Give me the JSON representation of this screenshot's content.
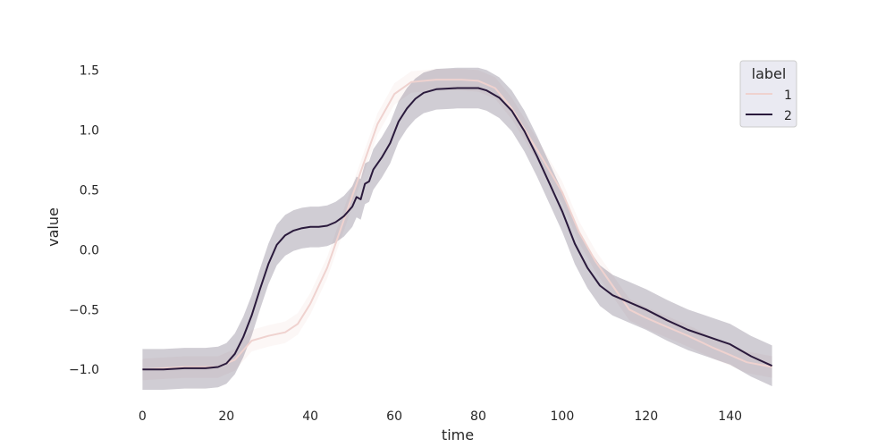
{
  "chart_data": {
    "type": "line",
    "xlabel": "time",
    "ylabel": "value",
    "xlim": [
      -2,
      152
    ],
    "ylim": [
      -1.2,
      1.6
    ],
    "xticks": [
      0,
      20,
      40,
      60,
      80,
      100,
      120,
      140
    ],
    "yticks": [
      -1.0,
      -0.5,
      0.0,
      0.5,
      1.0,
      1.5
    ],
    "ytick_labels": [
      "−1.0",
      "−0.5",
      "0.0",
      "0.5",
      "1.0",
      "1.5"
    ],
    "grid": false,
    "legend": {
      "title": "label",
      "placement": "top-right"
    },
    "series": [
      {
        "name": "1",
        "color": "#efd2cf",
        "band_opacity": 0.18,
        "points": [
          [
            0,
            -1.0
          ],
          [
            10,
            -0.98
          ],
          [
            18,
            -0.98
          ],
          [
            22,
            -0.92
          ],
          [
            26,
            -0.76
          ],
          [
            30,
            -0.72
          ],
          [
            34,
            -0.69
          ],
          [
            37,
            -0.62
          ],
          [
            40,
            -0.45
          ],
          [
            44,
            -0.15
          ],
          [
            48,
            0.25
          ],
          [
            52,
            0.65
          ],
          [
            56,
            1.05
          ],
          [
            60,
            1.3
          ],
          [
            64,
            1.4
          ],
          [
            70,
            1.42
          ],
          [
            76,
            1.42
          ],
          [
            80,
            1.41
          ],
          [
            84,
            1.35
          ],
          [
            88,
            1.18
          ],
          [
            92,
            0.95
          ],
          [
            96,
            0.72
          ],
          [
            100,
            0.48
          ],
          [
            104,
            0.15
          ],
          [
            108,
            -0.1
          ],
          [
            112,
            -0.3
          ],
          [
            116,
            -0.5
          ],
          [
            120,
            -0.57
          ],
          [
            124,
            -0.63
          ],
          [
            130,
            -0.72
          ],
          [
            136,
            -0.82
          ],
          [
            140,
            -0.88
          ],
          [
            144,
            -0.94
          ],
          [
            150,
            -0.98
          ]
        ],
        "band_half_width": 0.09
      },
      {
        "name": "2",
        "color": "#2a1a3c",
        "band_opacity": 0.22,
        "points": [
          [
            0,
            -1.0
          ],
          [
            5,
            -1.0
          ],
          [
            10,
            -0.99
          ],
          [
            15,
            -0.99
          ],
          [
            18,
            -0.98
          ],
          [
            20,
            -0.95
          ],
          [
            22,
            -0.87
          ],
          [
            24,
            -0.73
          ],
          [
            26,
            -0.55
          ],
          [
            28,
            -0.33
          ],
          [
            30,
            -0.12
          ],
          [
            32,
            0.04
          ],
          [
            34,
            0.12
          ],
          [
            36,
            0.16
          ],
          [
            38,
            0.18
          ],
          [
            40,
            0.19
          ],
          [
            42,
            0.19
          ],
          [
            44,
            0.2
          ],
          [
            46,
            0.23
          ],
          [
            48,
            0.28
          ],
          [
            50,
            0.36
          ],
          [
            51,
            0.44
          ],
          [
            52,
            0.42
          ],
          [
            53,
            0.55
          ],
          [
            54,
            0.57
          ],
          [
            55,
            0.67
          ],
          [
            57,
            0.77
          ],
          [
            59,
            0.89
          ],
          [
            61,
            1.07
          ],
          [
            63,
            1.18
          ],
          [
            65,
            1.26
          ],
          [
            67,
            1.31
          ],
          [
            70,
            1.34
          ],
          [
            75,
            1.35
          ],
          [
            80,
            1.35
          ],
          [
            82,
            1.33
          ],
          [
            85,
            1.27
          ],
          [
            88,
            1.16
          ],
          [
            91,
            0.99
          ],
          [
            94,
            0.78
          ],
          [
            97,
            0.55
          ],
          [
            100,
            0.32
          ],
          [
            103,
            0.05
          ],
          [
            106,
            -0.15
          ],
          [
            109,
            -0.3
          ],
          [
            112,
            -0.38
          ],
          [
            116,
            -0.44
          ],
          [
            120,
            -0.5
          ],
          [
            125,
            -0.59
          ],
          [
            130,
            -0.67
          ],
          [
            135,
            -0.73
          ],
          [
            140,
            -0.79
          ],
          [
            145,
            -0.89
          ],
          [
            150,
            -0.97
          ]
        ],
        "band_half_width": 0.17
      }
    ]
  }
}
